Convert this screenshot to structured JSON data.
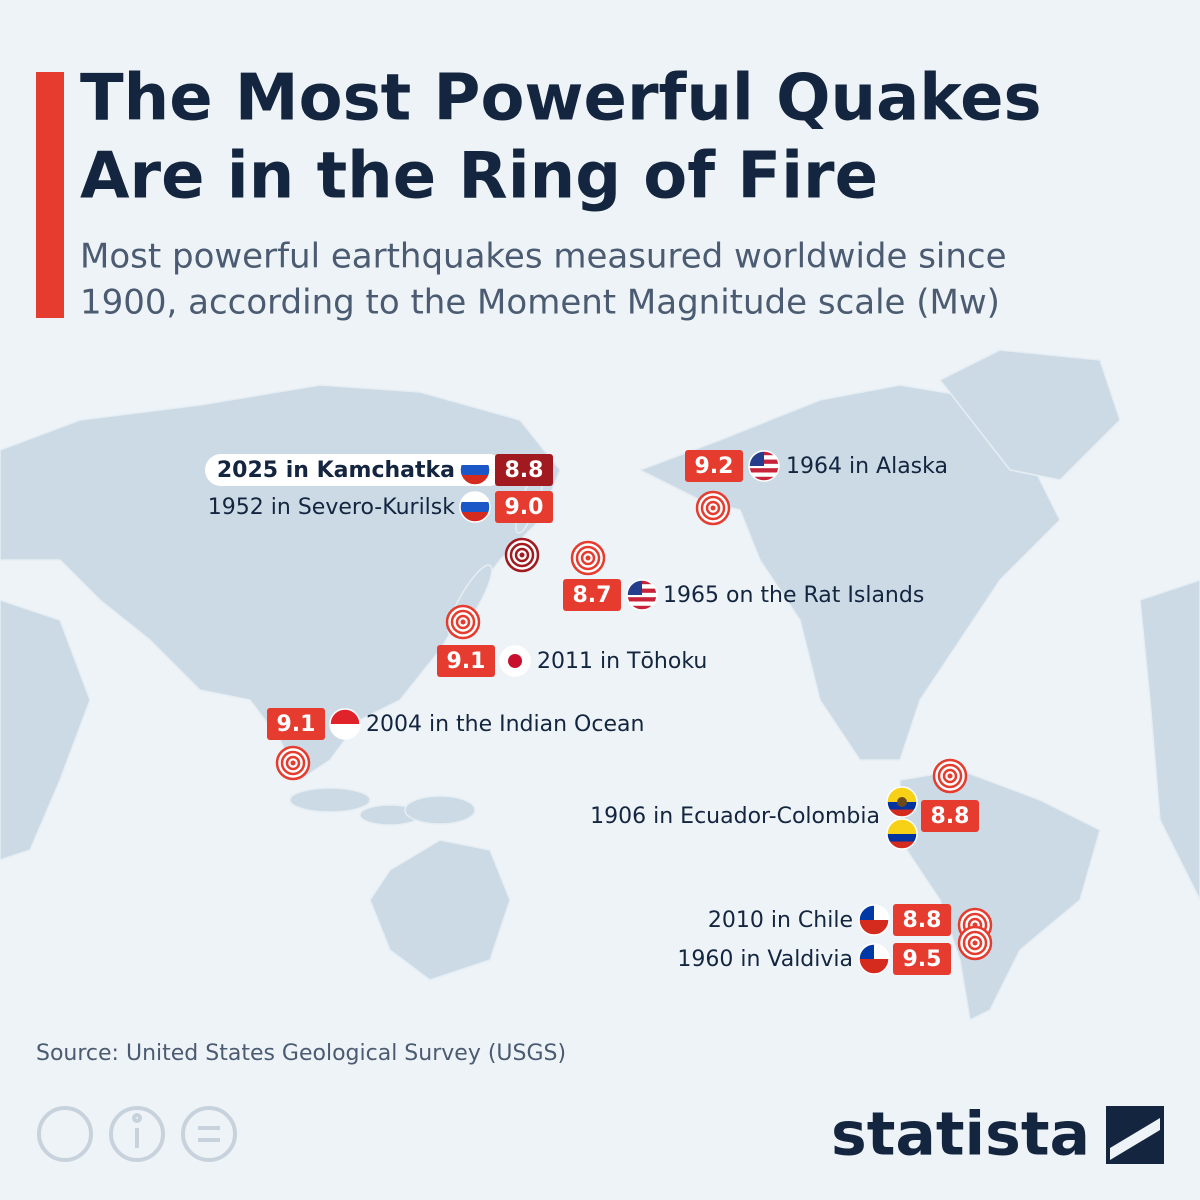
{
  "header": {
    "title_lines": [
      "The Most Powerful Quakes",
      "Are in the Ring of Fire"
    ],
    "subtitle_lines": [
      "Most powerful earthquakes measured worldwide since",
      "1900, according to the Moment Magnitude scale (Mw)"
    ]
  },
  "quakes": [
    {
      "label": "2025 in Kamchatka",
      "magnitude": "8.8"
    },
    {
      "label": "1952 in Severo-Kurilsk",
      "magnitude": "9.0"
    },
    {
      "label": "1964 in Alaska",
      "magnitude": "9.2"
    },
    {
      "label": "1965 on the Rat Islands",
      "magnitude": "8.7"
    },
    {
      "label": "2011 in Tōhoku",
      "magnitude": "9.1"
    },
    {
      "label": "2004 in the Indian Ocean",
      "magnitude": "9.1"
    },
    {
      "label": "1906 in Ecuador-Colombia",
      "magnitude": "8.8"
    },
    {
      "label": "2010 in Chile",
      "magnitude": "8.8"
    },
    {
      "label": "1960 in Valdivia",
      "magnitude": "9.5"
    }
  ],
  "source": "Source: United States Geological Survey (USGS)",
  "brand": "statista"
}
